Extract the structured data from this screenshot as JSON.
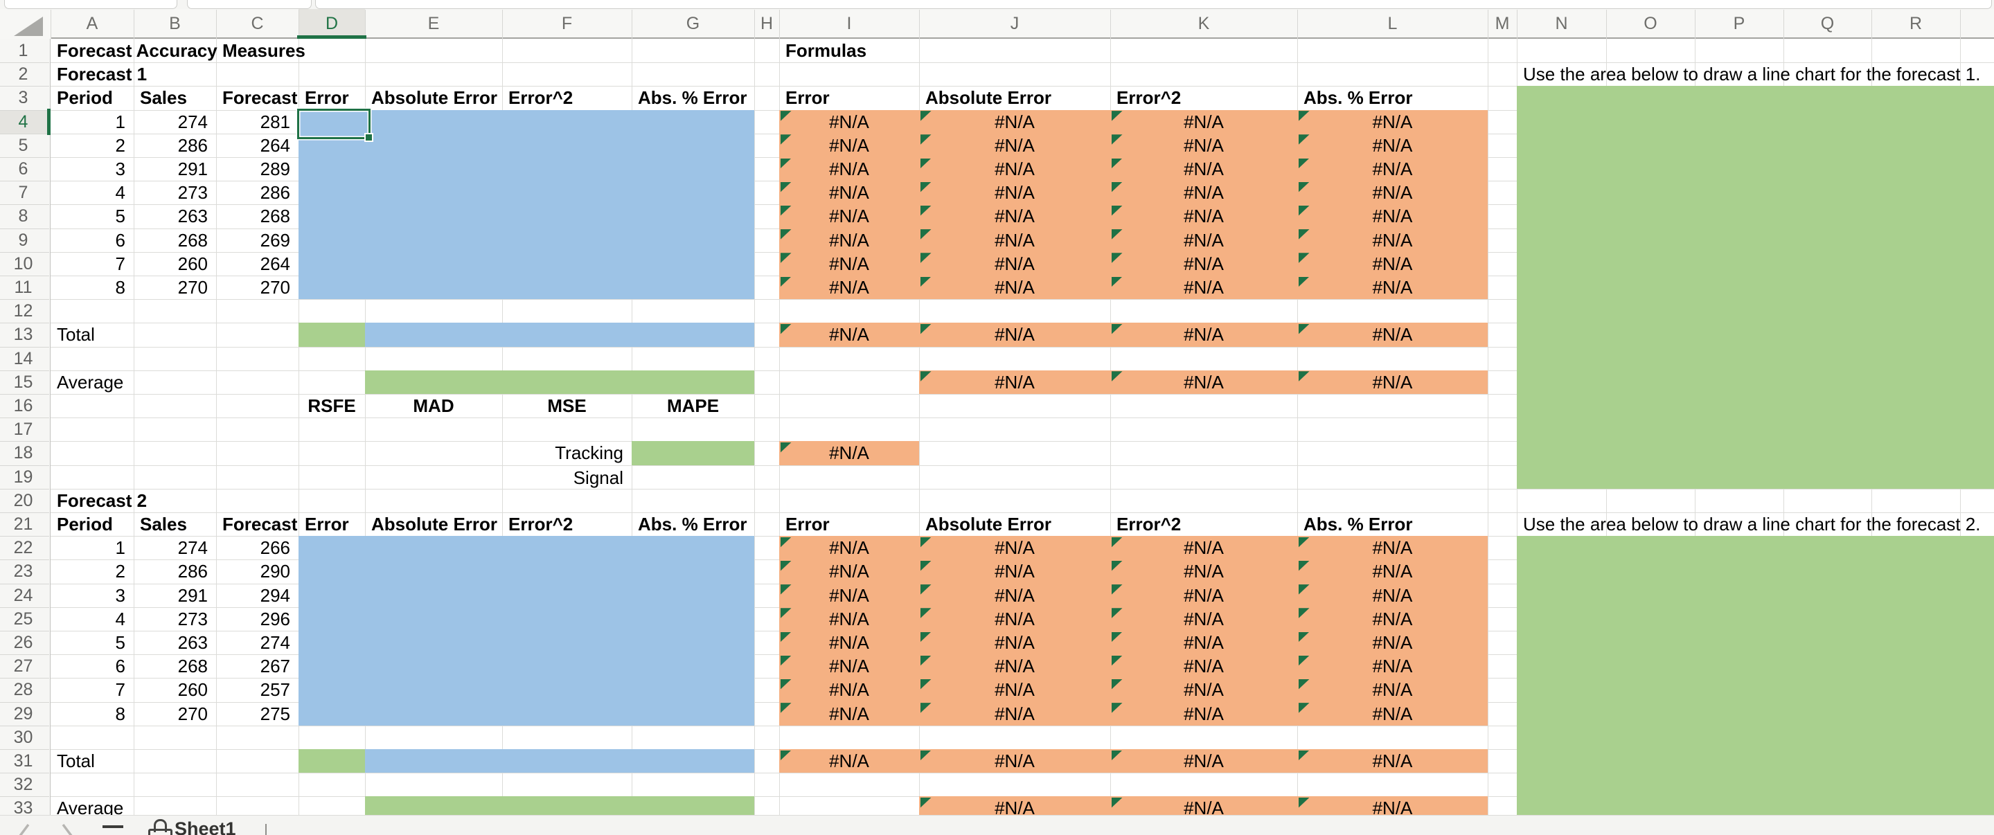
{
  "window": {
    "sheet_tab_label": "Sheet1"
  },
  "colors": {
    "blue_fill": "#9dc3e6",
    "green_fill": "#a9d08e",
    "orange_fill": "#f5b183",
    "selection_green": "#1f7246",
    "indicator_green": "#1e7145",
    "selected_header_text": "#217346"
  },
  "grid": {
    "column_letters": [
      "A",
      "B",
      "C",
      "D",
      "E",
      "F",
      "G",
      "H",
      "I",
      "J",
      "K",
      "L",
      "M",
      "N",
      "O",
      "P",
      "Q",
      "R"
    ],
    "row_count": 33,
    "selected_cell": "D4",
    "selected_column": "D",
    "selected_row": 4
  },
  "sheet": {
    "title": "Forecast Accuracy Measures",
    "formulas_heading": "Formulas",
    "table_headers": [
      "Period",
      "Sales",
      "Forecast",
      "Error",
      "Absolute Error",
      "Error^2",
      "Abs. % Error"
    ],
    "formula_headers": [
      "Error",
      "Absolute Error",
      "Error^2",
      "Abs. % Error"
    ],
    "total_label": "Total",
    "average_label": "Average",
    "measure_labels": [
      "RSFE",
      "MAD",
      "MSE",
      "MAPE"
    ],
    "tracking_signal_label": "Tracking Signal",
    "na_text": "#N/A",
    "note_forecast1": "Use the area below to draw a line chart for the forecast 1.",
    "note_forecast2": "Use the area below to draw a line chart for the forecast 2.",
    "forecast1": {
      "label": "Forecast 1",
      "periods": [
        1,
        2,
        3,
        4,
        5,
        6,
        7,
        8
      ],
      "sales": [
        274,
        286,
        291,
        273,
        263,
        268,
        260,
        270
      ],
      "forecast": [
        281,
        264,
        289,
        286,
        268,
        269,
        264,
        270
      ]
    },
    "forecast2": {
      "label": "Forecast 2",
      "periods": [
        1,
        2,
        3,
        4,
        5,
        6,
        7,
        8
      ],
      "sales": [
        274,
        286,
        291,
        273,
        263,
        268,
        260,
        270
      ],
      "forecast": [
        266,
        290,
        294,
        296,
        274,
        267,
        257,
        275
      ]
    }
  }
}
